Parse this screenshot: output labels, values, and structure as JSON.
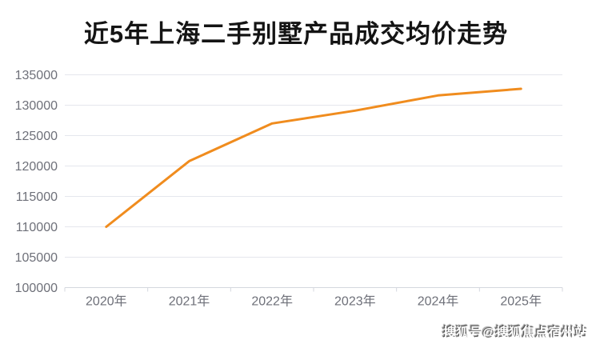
{
  "page": {
    "title": "近5年上海二手别墅产品成交均价走势",
    "watermark": "搜狐号@搜狐焦点宿州站"
  },
  "colors": {
    "background": "#FFFFFF",
    "title_text": "#141414",
    "axis_label": "#6E7079",
    "gridline": "#E4E7ED",
    "axis_line": "#D4D7DE",
    "line": "#F08C1E"
  },
  "chart_data": {
    "type": "line",
    "title": "近5年上海二手别墅产品成交均价走势",
    "categories": [
      "2020年",
      "2021年",
      "2022年",
      "2023年",
      "2024年",
      "2025年"
    ],
    "values": [
      110000,
      120800,
      127000,
      129100,
      131600,
      132700
    ],
    "xlabel": "",
    "ylabel": "",
    "ylim": [
      100000,
      135000
    ],
    "ytick_step": 5000,
    "ytick_labels": [
      "100000",
      "105000",
      "110000",
      "115000",
      "120000",
      "125000",
      "130000",
      "135000"
    ],
    "grid": true,
    "legend": false,
    "line_width": 3
  }
}
